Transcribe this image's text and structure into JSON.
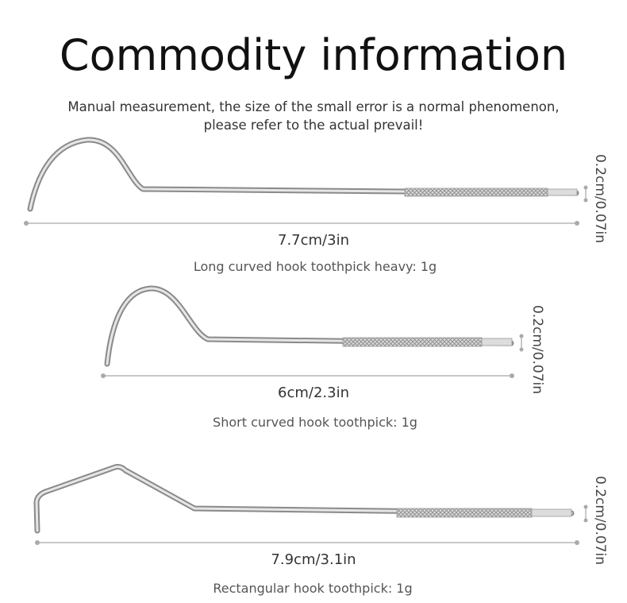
{
  "header": {
    "title": "Commodity information",
    "note_lines": [
      "Manual measurement, the size of the small error is a normal phenomenon,",
      "please refer to the actual prevail!"
    ]
  },
  "items": [
    {
      "length": "7.7cm/3in",
      "width": "0.2cm/0.07in",
      "caption": "Long curved hook toothpick heavy: 1g"
    },
    {
      "length": "6cm/2.3in",
      "width": "0.2cm/0.07in",
      "caption": "Short curved hook toothpick: 1g"
    },
    {
      "length": "7.9cm/3.1in",
      "width": "0.2cm/0.07in",
      "caption": "Rectangular hook toothpick: 1g"
    }
  ]
}
